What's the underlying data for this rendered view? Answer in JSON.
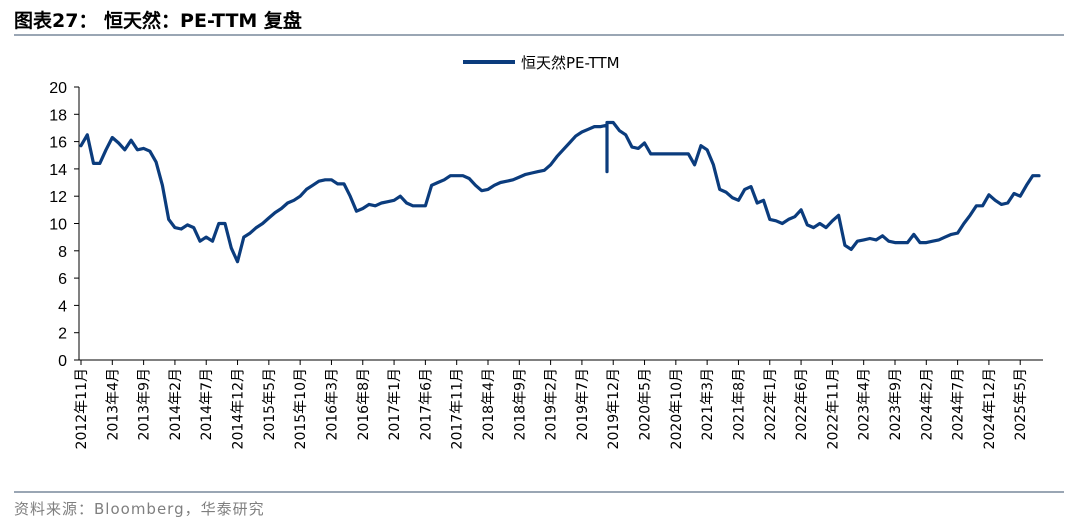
{
  "header": {
    "title": "图表27： 恒天然：PE-TTM 复盘"
  },
  "footer": {
    "source": "资料来源：Bloomberg，华泰研究"
  },
  "chart_data": {
    "type": "line",
    "title": "恒天然：PE-TTM 复盘",
    "xlabel": "",
    "ylabel": "",
    "ylim": [
      0,
      20
    ],
    "yticks": [
      0,
      2,
      4,
      6,
      8,
      10,
      12,
      14,
      16,
      18,
      20
    ],
    "grid": false,
    "legend_position": "top-center",
    "colors": {
      "series": "#0b3c7d",
      "axis": "#000000"
    },
    "x_tick_labels": [
      "2012年11月",
      "2013年4月",
      "2013年9月",
      "2014年2月",
      "2014年7月",
      "2014年12月",
      "2015年5月",
      "2015年10月",
      "2016年3月",
      "2016年8月",
      "2017年1月",
      "2017年6月",
      "2017年11月",
      "2018年4月",
      "2018年9月",
      "2019年2月",
      "2019年7月",
      "2019年12月",
      "2020年5月",
      "2020年10月",
      "2021年3月",
      "2021年8月",
      "2022年1月",
      "2022年6月",
      "2022年11月",
      "2023年4月",
      "2023年9月",
      "2024年2月",
      "2024年7月",
      "2024年12月",
      "2025年5月"
    ],
    "series": [
      {
        "name": "恒天然PE-TTM",
        "points": [
          [
            "2012-11",
            15.7
          ],
          [
            "2012-12",
            16.5
          ],
          [
            "2013-01",
            14.4
          ],
          [
            "2013-02",
            14.4
          ],
          [
            "2013-03",
            15.4
          ],
          [
            "2013-04",
            16.3
          ],
          [
            "2013-05",
            15.9
          ],
          [
            "2013-06",
            15.4
          ],
          [
            "2013-07",
            16.1
          ],
          [
            "2013-08",
            15.4
          ],
          [
            "2013-09",
            15.5
          ],
          [
            "2013-10",
            15.3
          ],
          [
            "2013-11",
            14.5
          ],
          [
            "2013-12",
            12.8
          ],
          [
            "2014-01",
            10.3
          ],
          [
            "2014-02",
            9.7
          ],
          [
            "2014-03",
            9.6
          ],
          [
            "2014-04",
            9.9
          ],
          [
            "2014-05",
            9.7
          ],
          [
            "2014-06",
            8.7
          ],
          [
            "2014-07",
            9.0
          ],
          [
            "2014-08",
            8.7
          ],
          [
            "2014-09",
            10.0
          ],
          [
            "2014-10",
            10.0
          ],
          [
            "2014-11",
            8.2
          ],
          [
            "2014-12",
            7.2
          ],
          [
            "2015-01",
            9.0
          ],
          [
            "2015-02",
            9.3
          ],
          [
            "2015-03",
            9.7
          ],
          [
            "2015-04",
            10.0
          ],
          [
            "2015-05",
            10.4
          ],
          [
            "2015-06",
            10.8
          ],
          [
            "2015-07",
            11.1
          ],
          [
            "2015-08",
            11.5
          ],
          [
            "2015-09",
            11.7
          ],
          [
            "2015-10",
            12.0
          ],
          [
            "2015-11",
            12.5
          ],
          [
            "2015-12",
            12.8
          ],
          [
            "2016-01",
            13.1
          ],
          [
            "2016-02",
            13.2
          ],
          [
            "2016-03",
            13.2
          ],
          [
            "2016-04",
            12.9
          ],
          [
            "2016-05",
            12.9
          ],
          [
            "2016-06",
            12.0
          ],
          [
            "2016-07",
            10.9
          ],
          [
            "2016-08",
            11.1
          ],
          [
            "2016-09",
            11.4
          ],
          [
            "2016-10",
            11.3
          ],
          [
            "2016-11",
            11.5
          ],
          [
            "2016-12",
            11.6
          ],
          [
            "2017-01",
            11.7
          ],
          [
            "2017-02",
            12.0
          ],
          [
            "2017-03",
            11.5
          ],
          [
            "2017-04",
            11.3
          ],
          [
            "2017-05",
            11.3
          ],
          [
            "2017-06",
            11.3
          ],
          [
            "2017-07",
            12.8
          ],
          [
            "2017-08",
            13.0
          ],
          [
            "2017-09",
            13.2
          ],
          [
            "2017-10",
            13.5
          ],
          [
            "2017-11",
            13.5
          ],
          [
            "2017-12",
            13.5
          ],
          [
            "2018-01",
            13.3
          ],
          [
            "2018-02",
            12.8
          ],
          [
            "2018-03",
            12.4
          ],
          [
            "2018-04",
            12.5
          ],
          [
            "2018-05",
            12.8
          ],
          [
            "2018-06",
            13.0
          ],
          [
            "2018-07",
            13.1
          ],
          [
            "2018-08",
            13.2
          ],
          [
            "2018-09",
            13.4
          ],
          [
            "2018-10",
            13.6
          ],
          [
            "2018-11",
            13.7
          ],
          [
            "2018-12",
            13.8
          ],
          [
            "2019-01",
            13.9
          ],
          [
            "2019-02",
            14.3
          ],
          [
            "2019-03",
            14.9
          ],
          [
            "2019-04",
            15.4
          ],
          [
            "2019-05",
            15.9
          ],
          [
            "2019-06",
            16.4
          ],
          [
            "2019-07",
            16.7
          ],
          [
            "2019-08",
            16.9
          ],
          [
            "2019-09",
            17.1
          ],
          [
            "2019-10",
            17.1
          ],
          [
            "2019-11",
            17.2
          ],
          [
            "2019-11",
            13.8
          ],
          [
            "2019-11",
            17.4
          ],
          [
            "2019-12",
            17.4
          ],
          [
            "2020-01",
            16.8
          ],
          [
            "2020-02",
            16.5
          ],
          [
            "2020-03",
            15.6
          ],
          [
            "2020-04",
            15.5
          ],
          [
            "2020-05",
            15.9
          ],
          [
            "2020-06",
            15.1
          ],
          [
            "2020-07",
            15.1
          ],
          [
            "2020-08",
            15.1
          ],
          [
            "2020-09",
            15.1
          ],
          [
            "2020-10",
            15.1
          ],
          [
            "2020-11",
            15.1
          ],
          [
            "2020-12",
            15.1
          ],
          [
            "2021-01",
            14.3
          ],
          [
            "2021-02",
            15.7
          ],
          [
            "2021-03",
            15.4
          ],
          [
            "2021-04",
            14.3
          ],
          [
            "2021-05",
            12.5
          ],
          [
            "2021-06",
            12.3
          ],
          [
            "2021-07",
            11.9
          ],
          [
            "2021-08",
            11.7
          ],
          [
            "2021-09",
            12.5
          ],
          [
            "2021-10",
            12.7
          ],
          [
            "2021-11",
            11.5
          ],
          [
            "2021-12",
            11.7
          ],
          [
            "2022-01",
            10.3
          ],
          [
            "2022-02",
            10.2
          ],
          [
            "2022-03",
            10.0
          ],
          [
            "2022-04",
            10.3
          ],
          [
            "2022-05",
            10.5
          ],
          [
            "2022-06",
            11.0
          ],
          [
            "2022-07",
            9.9
          ],
          [
            "2022-08",
            9.7
          ],
          [
            "2022-09",
            10.0
          ],
          [
            "2022-10",
            9.7
          ],
          [
            "2022-11",
            10.2
          ],
          [
            "2022-12",
            10.6
          ],
          [
            "2023-01",
            8.4
          ],
          [
            "2023-02",
            8.1
          ],
          [
            "2023-03",
            8.7
          ],
          [
            "2023-04",
            8.8
          ],
          [
            "2023-05",
            8.9
          ],
          [
            "2023-06",
            8.8
          ],
          [
            "2023-07",
            9.1
          ],
          [
            "2023-08",
            8.7
          ],
          [
            "2023-09",
            8.6
          ],
          [
            "2023-10",
            8.6
          ],
          [
            "2023-11",
            8.6
          ],
          [
            "2023-12",
            9.2
          ],
          [
            "2024-01",
            8.6
          ],
          [
            "2024-02",
            8.6
          ],
          [
            "2024-03",
            8.7
          ],
          [
            "2024-04",
            8.8
          ],
          [
            "2024-05",
            9.0
          ],
          [
            "2024-06",
            9.2
          ],
          [
            "2024-07",
            9.3
          ],
          [
            "2024-08",
            10.0
          ],
          [
            "2024-09",
            10.6
          ],
          [
            "2024-10",
            11.3
          ],
          [
            "2024-11",
            11.3
          ],
          [
            "2024-12",
            12.1
          ],
          [
            "2025-01",
            11.7
          ],
          [
            "2025-02",
            11.4
          ],
          [
            "2025-03",
            11.5
          ],
          [
            "2025-04",
            12.2
          ],
          [
            "2025-05",
            12.0
          ],
          [
            "2025-06",
            12.8
          ],
          [
            "2025-07",
            13.5
          ],
          [
            "2025-08",
            13.5
          ]
        ]
      }
    ]
  }
}
